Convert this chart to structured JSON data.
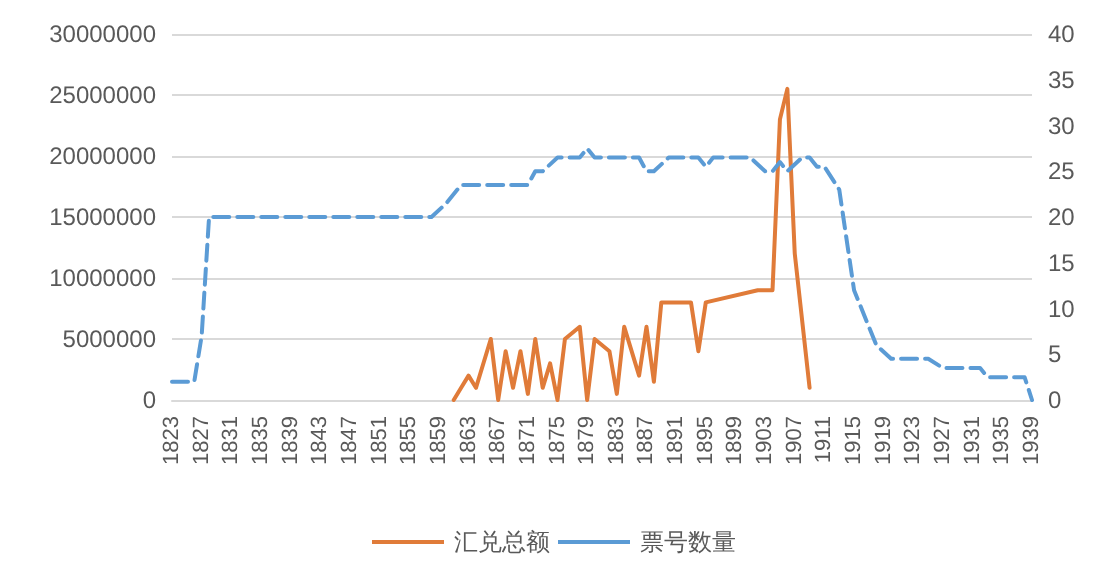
{
  "chart_data": {
    "type": "line",
    "xlim": [
      1823,
      1939
    ],
    "xticks": [
      1823,
      1827,
      1831,
      1835,
      1839,
      1843,
      1847,
      1851,
      1855,
      1859,
      1863,
      1867,
      1871,
      1875,
      1879,
      1883,
      1887,
      1891,
      1895,
      1899,
      1903,
      1907,
      1911,
      1915,
      1919,
      1923,
      1927,
      1931,
      1935,
      1939
    ],
    "ylim": [
      0,
      30000000
    ],
    "yticks": [
      0,
      5000000,
      10000000,
      15000000,
      20000000,
      25000000,
      30000000
    ],
    "y2lim": [
      0,
      40
    ],
    "y2ticks": [
      0,
      5,
      10,
      15,
      20,
      25,
      30,
      35,
      40
    ],
    "grid": "y",
    "legend": "bottom",
    "marker": "none",
    "series": [
      {
        "name": "汇兑总额",
        "color": "#e07b39",
        "line_style": "solid",
        "x": [
          1861,
          1862,
          1863,
          1864,
          1866,
          1867,
          1868,
          1869,
          1870,
          1871,
          1872,
          1873,
          1874,
          1875,
          1876,
          1878,
          1879,
          1880,
          1882,
          1883,
          1884,
          1886,
          1887,
          1888,
          1889,
          1893,
          1894,
          1895,
          1902,
          1904,
          1905,
          1906,
          1907,
          1909
        ],
        "values": [
          0,
          1000000,
          2000000,
          1000000,
          5000000,
          0,
          4000000,
          1000000,
          4000000,
          500000,
          5000000,
          1000000,
          3000000,
          0,
          5000000,
          6000000,
          0,
          5000000,
          4000000,
          500000,
          6000000,
          2000000,
          6000000,
          1500000,
          8000000,
          8000000,
          4000000,
          8000000,
          9000000,
          9000000,
          23000000,
          25500000,
          12000000,
          1000000
        ]
      },
      {
        "name": "票号数量",
        "color": "#5b9bd5",
        "line_style": "dashed",
        "axis": "y2",
        "x": [
          1823,
          1826,
          1827,
          1828,
          1858,
          1860,
          1862,
          1871,
          1872,
          1873,
          1875,
          1878,
          1879,
          1880,
          1886,
          1887,
          1888,
          1890,
          1894,
          1895,
          1896,
          1901,
          1903,
          1904,
          1905,
          1906,
          1908,
          1909,
          1910,
          1911,
          1913,
          1915,
          1918,
          1920,
          1925,
          1927,
          1932,
          1933,
          1938,
          1939
        ],
        "values": [
          2,
          2,
          7,
          20,
          20,
          21.5,
          23.5,
          23.5,
          25,
          25,
          26.5,
          26.5,
          27.5,
          26.5,
          26.5,
          25,
          25,
          26.5,
          26.5,
          25.5,
          26.5,
          26.5,
          25,
          25,
          26,
          25,
          26.5,
          26.5,
          25.5,
          25.5,
          23,
          12,
          6,
          4.5,
          4.5,
          3.5,
          3.5,
          2.5,
          2.5,
          0
        ]
      }
    ]
  }
}
